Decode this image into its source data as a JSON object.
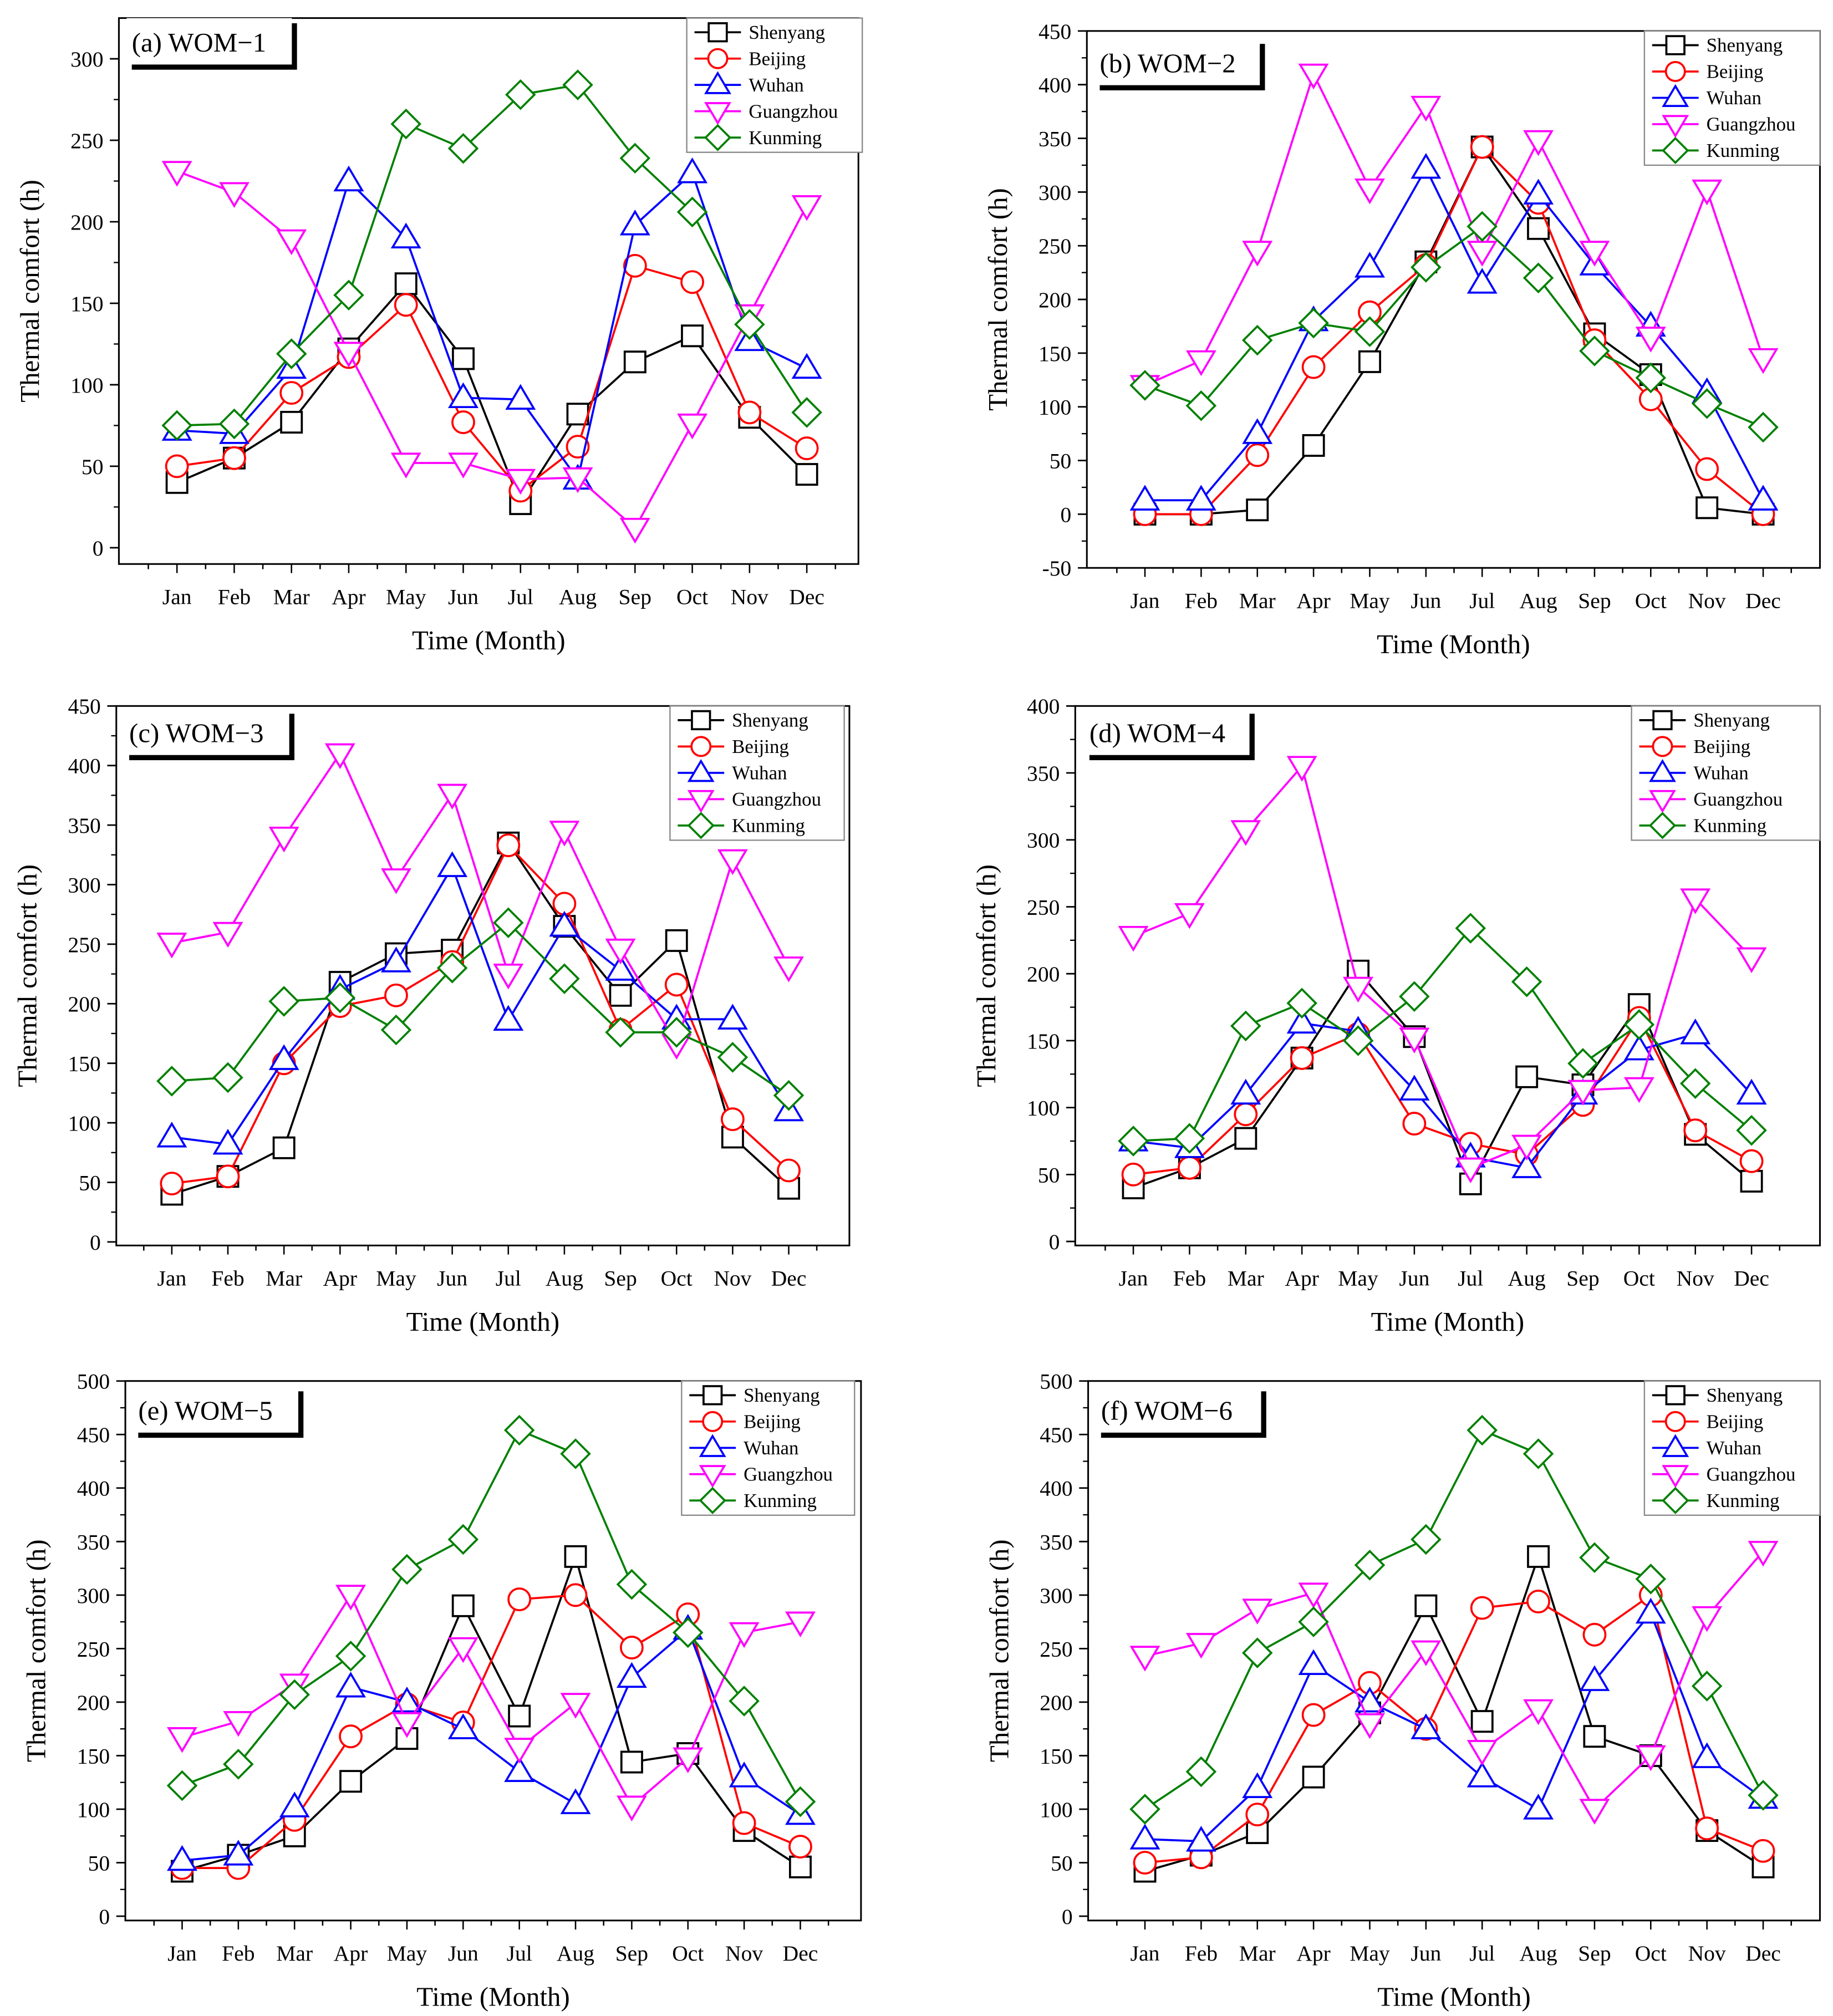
{
  "chart_data": [
    {
      "type": "line",
      "title": "(a) WOM−1",
      "xlabel": "Time (Month)",
      "ylabel": "Thermal comfort (h)",
      "categories": [
        "Jan",
        "Feb",
        "Mar",
        "Apr",
        "May",
        "Jun",
        "Jul",
        "Aug",
        "Sep",
        "Oct",
        "Nov",
        "Dec"
      ],
      "ylim": [
        -10,
        325
      ],
      "yticks": [
        0,
        50,
        100,
        150,
        200,
        250,
        300
      ],
      "legend": "top-right",
      "series": [
        {
          "name": "Shenyang",
          "color": "#000000",
          "marker": "square",
          "values": [
            40,
            55,
            77,
            122,
            162,
            116,
            27,
            82,
            114,
            130,
            80,
            45
          ]
        },
        {
          "name": "Beijing",
          "color": "#ff0000",
          "marker": "circle",
          "values": [
            50,
            55,
            95,
            117,
            149,
            77,
            35,
            62,
            173,
            163,
            83,
            61
          ]
        },
        {
          "name": "Wuhan",
          "color": "#0000ff",
          "marker": "triangle-up",
          "values": [
            72,
            70,
            110,
            225,
            190,
            92,
            91,
            42,
            198,
            230,
            127,
            110
          ]
        },
        {
          "name": "Guangzhou",
          "color": "#ff00ff",
          "marker": "triangle-down",
          "values": [
            231,
            218,
            189,
            120,
            52,
            52,
            42,
            43,
            12,
            76,
            143,
            210
          ]
        },
        {
          "name": "Kunming",
          "color": "#008000",
          "marker": "diamond",
          "values": [
            75,
            76,
            119,
            155,
            260,
            245,
            278,
            284,
            239,
            206,
            137,
            83
          ]
        }
      ]
    },
    {
      "type": "line",
      "title": "(b) WOM−2",
      "xlabel": "Time (Month)",
      "ylabel": "Thermal comfort (h)",
      "categories": [
        "Jan",
        "Feb",
        "Mar",
        "Apr",
        "May",
        "Jun",
        "Jul",
        "Aug",
        "Sep",
        "Oct",
        "Nov",
        "Dec"
      ],
      "ylim": [
        -50,
        450
      ],
      "yticks": [
        -50,
        0,
        50,
        100,
        150,
        200,
        250,
        300,
        350,
        400,
        450
      ],
      "legend": "top-right",
      "series": [
        {
          "name": "Shenyang",
          "color": "#000000",
          "marker": "square",
          "values": [
            0,
            0,
            4,
            64,
            142,
            235,
            342,
            266,
            168,
            130,
            6,
            0
          ]
        },
        {
          "name": "Beijing",
          "color": "#ff0000",
          "marker": "circle",
          "values": [
            0,
            0,
            55,
            137,
            188,
            232,
            342,
            290,
            162,
            107,
            42,
            0
          ]
        },
        {
          "name": "Wuhan",
          "color": "#0000ff",
          "marker": "triangle-up",
          "values": [
            13,
            13,
            75,
            180,
            230,
            322,
            215,
            298,
            232,
            175,
            113,
            13
          ]
        },
        {
          "name": "Guangzhou",
          "color": "#ff00ff",
          "marker": "triangle-down",
          "values": [
            120,
            143,
            245,
            410,
            303,
            380,
            245,
            348,
            245,
            165,
            302,
            145
          ]
        },
        {
          "name": "Kunming",
          "color": "#008000",
          "marker": "diamond",
          "values": [
            120,
            101,
            162,
            178,
            170,
            230,
            268,
            220,
            152,
            127,
            103,
            81
          ]
        }
      ]
    },
    {
      "type": "line",
      "title": "(c) WOM−3",
      "xlabel": "Time (Month)",
      "ylabel": "Thermal comfort (h)",
      "categories": [
        "Jan",
        "Feb",
        "Mar",
        "Apr",
        "May",
        "Jun",
        "Jul",
        "Aug",
        "Sep",
        "Oct",
        "Nov",
        "Dec"
      ],
      "ylim": [
        -3,
        450
      ],
      "yticks": [
        0,
        50,
        100,
        150,
        200,
        250,
        300,
        350,
        400,
        450
      ],
      "legend": "top-right",
      "series": [
        {
          "name": "Shenyang",
          "color": "#000000",
          "marker": "square",
          "values": [
            40,
            55,
            79,
            218,
            242,
            245,
            335,
            265,
            207,
            253,
            88,
            45
          ]
        },
        {
          "name": "Beijing",
          "color": "#ff0000",
          "marker": "circle",
          "values": [
            49,
            55,
            150,
            198,
            207,
            235,
            333,
            284,
            178,
            216,
            103,
            60
          ]
        },
        {
          "name": "Wuhan",
          "color": "#0000ff",
          "marker": "triangle-up",
          "values": [
            88,
            82,
            153,
            212,
            235,
            315,
            186,
            265,
            228,
            187,
            187,
            110
          ]
        },
        {
          "name": "Guangzhou",
          "color": "#ff00ff",
          "marker": "triangle-down",
          "values": [
            251,
            260,
            340,
            410,
            305,
            376,
            225,
            345,
            246,
            166,
            321,
            231
          ]
        },
        {
          "name": "Kunming",
          "color": "#008000",
          "marker": "diamond",
          "values": [
            135,
            138,
            202,
            205,
            178,
            230,
            268,
            221,
            176,
            176,
            155,
            123
          ]
        }
      ]
    },
    {
      "type": "line",
      "title": "(d) WOM−4",
      "xlabel": "Time (Month)",
      "ylabel": "Thermal comfort (h)",
      "categories": [
        "Jan",
        "Feb",
        "Mar",
        "Apr",
        "May",
        "Jun",
        "Jul",
        "Aug",
        "Sep",
        "Oct",
        "Nov",
        "Dec"
      ],
      "ylim": [
        -3,
        400
      ],
      "yticks": [
        0,
        50,
        100,
        150,
        200,
        250,
        300,
        350,
        400
      ],
      "legend": "top-right",
      "series": [
        {
          "name": "Shenyang",
          "color": "#000000",
          "marker": "square",
          "values": [
            40,
            55,
            77,
            137,
            202,
            153,
            43,
            123,
            117,
            177,
            80,
            45
          ]
        },
        {
          "name": "Beijing",
          "color": "#ff0000",
          "marker": "circle",
          "values": [
            50,
            55,
            95,
            137,
            155,
            88,
            73,
            65,
            102,
            167,
            83,
            60
          ]
        },
        {
          "name": "Wuhan",
          "color": "#0000ff",
          "marker": "triangle-up",
          "values": [
            75,
            70,
            110,
            163,
            157,
            113,
            63,
            55,
            110,
            143,
            155,
            110
          ]
        },
        {
          "name": "Guangzhou",
          "color": "#ff00ff",
          "marker": "triangle-down",
          "values": [
            228,
            245,
            307,
            355,
            190,
            152,
            55,
            72,
            113,
            115,
            256,
            212
          ]
        },
        {
          "name": "Kunming",
          "color": "#008000",
          "marker": "diamond",
          "values": [
            75,
            77,
            161,
            178,
            150,
            183,
            234,
            194,
            133,
            162,
            118,
            83
          ]
        }
      ]
    },
    {
      "type": "line",
      "title": "(e) WOM−5",
      "xlabel": "Time (Month)",
      "ylabel": "Thermal comfort (h)",
      "categories": [
        "Jan",
        "Feb",
        "Mar",
        "Apr",
        "May",
        "Jun",
        "Jul",
        "Aug",
        "Sep",
        "Oct",
        "Nov",
        "Dec"
      ],
      "ylim": [
        -4,
        500
      ],
      "yticks": [
        0,
        50,
        100,
        150,
        200,
        250,
        300,
        350,
        400,
        450,
        500
      ],
      "legend": "top-right",
      "series": [
        {
          "name": "Shenyang",
          "color": "#000000",
          "marker": "square",
          "values": [
            42,
            57,
            75,
            126,
            166,
            290,
            187,
            336,
            144,
            152,
            80,
            46
          ]
        },
        {
          "name": "Beijing",
          "color": "#ff0000",
          "marker": "circle",
          "values": [
            45,
            45,
            90,
            168,
            198,
            181,
            296,
            300,
            251,
            282,
            87,
            65
          ]
        },
        {
          "name": "Wuhan",
          "color": "#0000ff",
          "marker": "triangle-up",
          "values": [
            52,
            57,
            102,
            214,
            200,
            175,
            135,
            105,
            223,
            268,
            130,
            95
          ]
        },
        {
          "name": "Guangzhou",
          "color": "#ff00ff",
          "marker": "triangle-down",
          "values": [
            167,
            182,
            217,
            300,
            181,
            251,
            157,
            199,
            103,
            148,
            265,
            275
          ]
        },
        {
          "name": "Kunming",
          "color": "#008000",
          "marker": "diamond",
          "values": [
            122,
            142,
            207,
            243,
            324,
            352,
            454,
            432,
            310,
            265,
            201,
            107
          ]
        }
      ]
    },
    {
      "type": "line",
      "title": "(f) WOM−6",
      "xlabel": "Time (Month)",
      "ylabel": "Thermal comfort (h)",
      "categories": [
        "Jan",
        "Feb",
        "Mar",
        "Apr",
        "May",
        "Jun",
        "Jul",
        "Aug",
        "Sep",
        "Oct",
        "Nov",
        "Dec"
      ],
      "ylim": [
        -4,
        500
      ],
      "yticks": [
        0,
        50,
        100,
        150,
        200,
        250,
        300,
        350,
        400,
        450,
        500
      ],
      "legend": "top-right",
      "series": [
        {
          "name": "Shenyang",
          "color": "#000000",
          "marker": "square",
          "values": [
            42,
            57,
            78,
            130,
            190,
            290,
            182,
            336,
            168,
            150,
            80,
            46
          ]
        },
        {
          "name": "Beijing",
          "color": "#ff0000",
          "marker": "circle",
          "values": [
            50,
            55,
            95,
            188,
            218,
            175,
            288,
            294,
            263,
            300,
            82,
            61
          ]
        },
        {
          "name": "Wuhan",
          "color": "#0000ff",
          "marker": "triangle-up",
          "values": [
            72,
            70,
            120,
            235,
            200,
            175,
            130,
            100,
            220,
            283,
            148,
            110
          ]
        },
        {
          "name": "Guangzhou",
          "color": "#ff00ff",
          "marker": "triangle-down",
          "values": [
            243,
            255,
            287,
            302,
            180,
            248,
            155,
            193,
            100,
            150,
            280,
            341
          ]
        },
        {
          "name": "Kunming",
          "color": "#008000",
          "marker": "diamond",
          "values": [
            100,
            135,
            246,
            275,
            328,
            352,
            454,
            432,
            335,
            315,
            215,
            113
          ]
        }
      ]
    }
  ]
}
